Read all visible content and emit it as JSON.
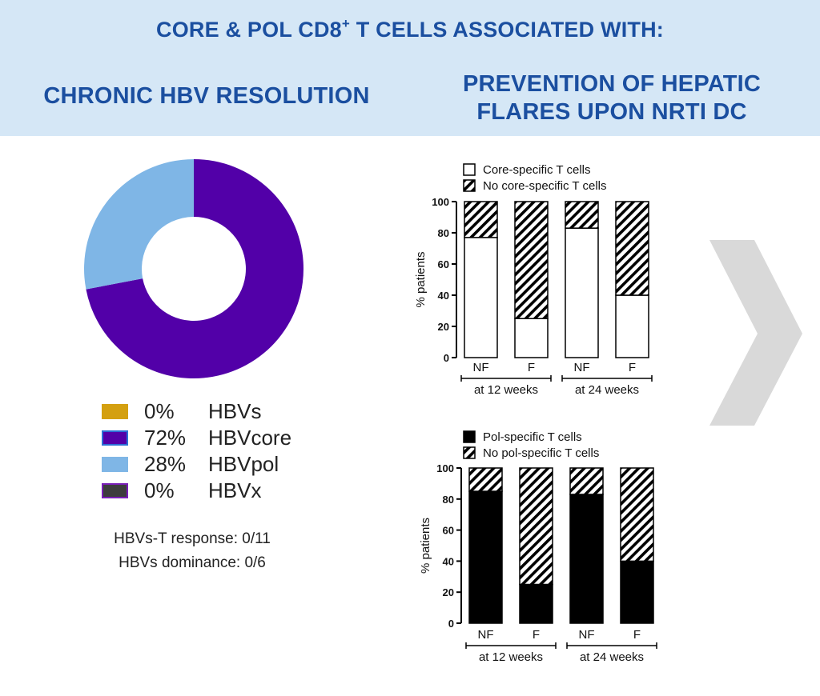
{
  "header": {
    "title_main": "CORE & POL CD8",
    "title_sup": "+",
    "title_rest": " T CELLS ASSOCIATED WITH:",
    "left_heading": "CHRONIC HBV RESOLUTION",
    "right_heading_line1": "PREVENTION OF HEPATIC",
    "right_heading_line2": "FLARES UPON NRTI DC"
  },
  "legend": [
    {
      "pct": "0%",
      "name": "HBVs",
      "color": "#d4a010",
      "border": "#d4a010"
    },
    {
      "pct": "72%",
      "name": "HBVcore",
      "color": "#5200a8",
      "border": "#2b6fd6"
    },
    {
      "pct": "28%",
      "name": "HBVpol",
      "color": "#7fb6e6",
      "border": "#7fb6e6"
    },
    {
      "pct": "0%",
      "name": "HBVx",
      "color": "#3d3d3d",
      "border": "#7a1fb8"
    }
  ],
  "notes": {
    "line1": "HBVs-T response: 0/11",
    "line2": "HBVs dominance: 0/6"
  },
  "chart_data": [
    {
      "type": "pie",
      "labels": [
        "HBVs",
        "HBVcore",
        "HBVpol",
        "HBVx"
      ],
      "values": [
        0,
        72,
        28,
        0
      ],
      "colors": [
        "#d4a010",
        "#5200a8",
        "#7fb6e6",
        "#3d3d3d"
      ]
    },
    {
      "type": "bar",
      "stacked": true,
      "categories": [
        "NF",
        "F",
        "NF",
        "F"
      ],
      "groups": [
        "at 12 weeks",
        "at 24 weeks"
      ],
      "ylabel": "% patients",
      "ylim": [
        0,
        100
      ],
      "yticks": [
        "0",
        "20",
        "40",
        "60",
        "80",
        "100"
      ],
      "series": [
        {
          "name": "Core-specific T cells",
          "fill": "#ffffff",
          "values": [
            77,
            25,
            83,
            40
          ]
        },
        {
          "name": "No core-specific T cells",
          "fill": "hatch",
          "values": [
            23,
            75,
            17,
            60
          ]
        }
      ],
      "legend_position": "top-left"
    },
    {
      "type": "bar",
      "stacked": true,
      "categories": [
        "NF",
        "F",
        "NF",
        "F"
      ],
      "groups": [
        "at 12 weeks",
        "at 24 weeks"
      ],
      "ylabel": "% patients",
      "ylim": [
        0,
        100
      ],
      "yticks": [
        "0",
        "20",
        "40",
        "60",
        "80",
        "100"
      ],
      "series": [
        {
          "name": "Pol-specific T cells",
          "fill": "#000000",
          "values": [
            85,
            25,
            83,
            40
          ]
        },
        {
          "name": "No pol-specific T cells",
          "fill": "hatch",
          "values": [
            15,
            75,
            17,
            60
          ]
        }
      ],
      "legend_position": "top-left"
    }
  ],
  "colors": {
    "header_bg": "#d5e7f6",
    "header_text": "#1b4fa0",
    "arrow": "#d9d9d9"
  }
}
